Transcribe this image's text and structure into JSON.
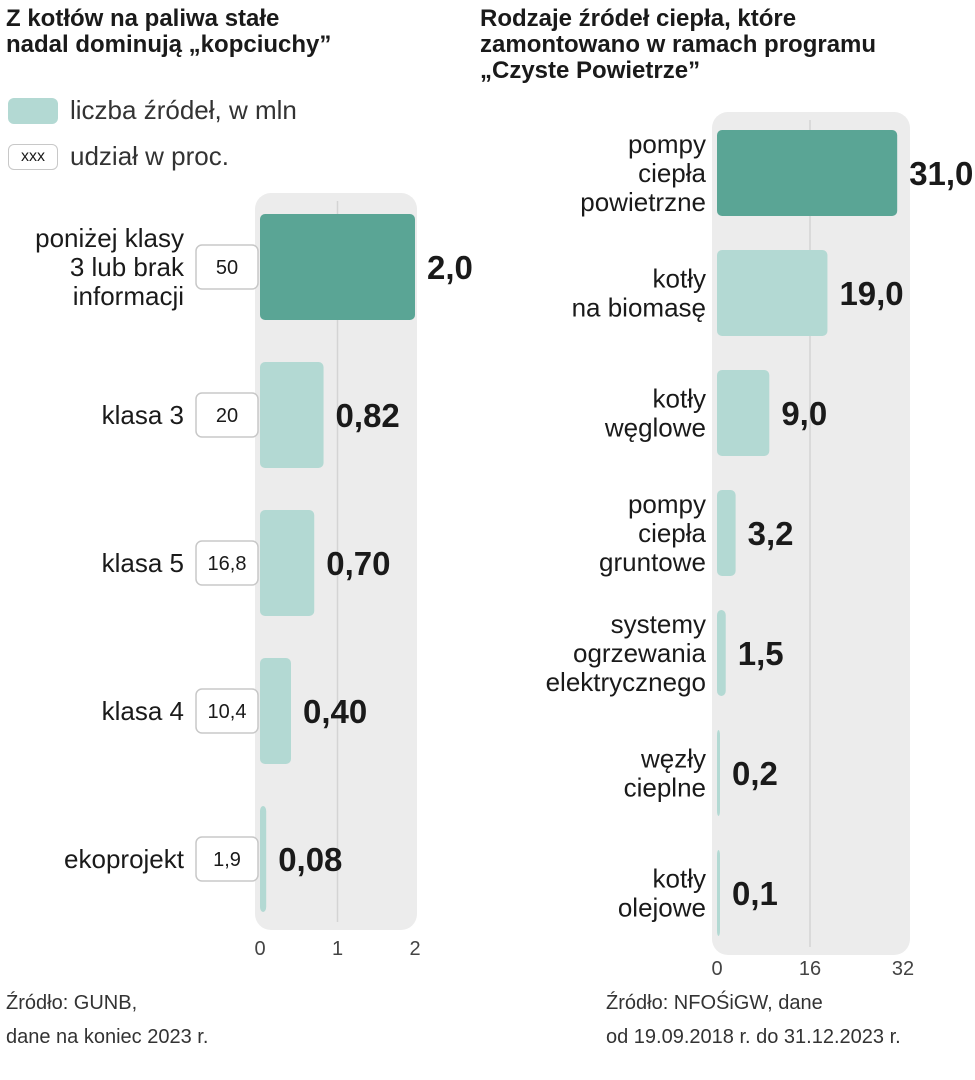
{
  "chart_data": [
    {
      "type": "bar",
      "orientation": "horizontal",
      "title": "Z kotłów na paliwa stałe\nnadal dominują „kopciuchy”",
      "legend": {
        "series_label": "liczba źródeł, w mln",
        "share_sample": "xxx",
        "share_label": "udział  w proc."
      },
      "categories": [
        "poniżej klasy 3 lub brak informacji",
        "klasa 3",
        "klasa 5",
        "klasa 4",
        "ekoprojekt"
      ],
      "category_labels": [
        "poniżej klasy\n3 lub brak\ninformacji",
        "klasa 3",
        "klasa 5",
        "klasa 4",
        "ekoprojekt"
      ],
      "series": [
        {
          "values": [
            2.0,
            0.82,
            0.7,
            0.4,
            0.08
          ]
        }
      ],
      "value_labels": [
        "2,0",
        "0,82",
        "0,70",
        "0,40",
        "0,08"
      ],
      "shares": [
        "50",
        "20",
        "16,8",
        "10,4",
        "1,9"
      ],
      "xlim": [
        0,
        2
      ],
      "xticks": [
        "0",
        "1",
        "2"
      ],
      "grid": true,
      "source": "Źródło: GUNB,\ndane na koniec 2023 r."
    },
    {
      "type": "bar",
      "orientation": "horizontal",
      "title": "Rodzaje źródeł ciepła, które\nzamontowano w ramach programu\n„Czyste Powietrze”",
      "categories": [
        "pompy ciepła powietrzne",
        "kotły na biomasę",
        "kotły węglowe",
        "pompy ciepła gruntowe",
        "systemy ogrzewania elektrycznego",
        "węzły cieplne",
        "kotły olejowe"
      ],
      "category_labels": [
        "pompy\nciepła\npowietrzne",
        "kotły\nna biomasę",
        "kotły\nwęglowe",
        "pompy\nciepła\ngruntowe",
        "systemy\nogrzewania\nelektrycznego",
        "węzły\ncieplne",
        "kotły\nolejowe"
      ],
      "series": [
        {
          "values": [
            31.0,
            19.0,
            9.0,
            3.2,
            1.5,
            0.2,
            0.1
          ]
        }
      ],
      "value_labels": [
        "31,0",
        "19,0",
        "9,0",
        "3,2",
        "1,5",
        "0,2",
        "0,1"
      ],
      "xlim": [
        0,
        32
      ],
      "xticks": [
        "0",
        "16",
        "32"
      ],
      "grid": true,
      "source": "Źródło: NFOŚiGW, dane\nod 19.09.2018 r. do 31.12.2023 r."
    }
  ],
  "colors": {
    "highlight": "#5aa595",
    "bar": "#b3d9d3",
    "panel": "#ececec",
    "grid": "#d4d4d4"
  }
}
